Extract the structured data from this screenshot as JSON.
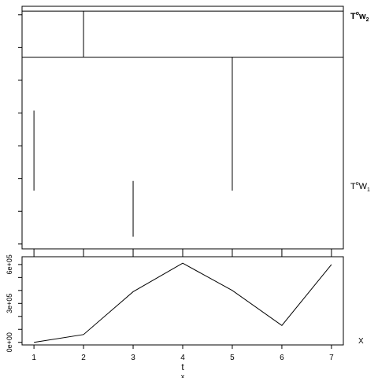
{
  "chart_data": [
    {
      "type": "line",
      "panel": "upper",
      "y_axis_labels_shown": false,
      "right_labels": [
        {
          "id": "w2",
          "base": "T",
          "sup": "o",
          "mid": "w",
          "sub": "2"
        },
        {
          "id": "w1",
          "base": "T",
          "sup": "o",
          "mid": "W",
          "sub": "1"
        }
      ],
      "xlim": [
        0.76,
        7.24
      ],
      "ylim": [
        0,
        1
      ],
      "horizontal_lines": [
        0.98,
        0.79
      ],
      "vertical_segments": [
        {
          "x": 1,
          "y0": 0.24,
          "y1": 0.57
        },
        {
          "x": 2,
          "y0": 0.79,
          "y1": 0.98
        },
        {
          "x": 3,
          "y0": 0.05,
          "y1": 0.28
        },
        {
          "x": 5,
          "y0": 0.24,
          "y1": 0.79
        }
      ]
    },
    {
      "type": "line",
      "panel": "lower",
      "x": [
        1,
        2,
        3,
        4,
        5,
        6,
        7
      ],
      "values": [
        0,
        60000,
        390000,
        610000,
        400000,
        130000,
        600000
      ],
      "xlim": [
        0.76,
        7.24
      ],
      "ylim": [
        -20000,
        660000
      ],
      "x_ticks": [
        "1",
        "2",
        "3",
        "4",
        "5",
        "6",
        "7"
      ],
      "y_ticks": [
        {
          "value": 0,
          "label": "0e+00"
        },
        {
          "value": 100000,
          "label": ""
        },
        {
          "value": 200000,
          "label": ""
        },
        {
          "value": 300000,
          "label": "3e+05"
        },
        {
          "value": 400000,
          "label": ""
        },
        {
          "value": 500000,
          "label": ""
        },
        {
          "value": 600000,
          "label": "6e+05"
        }
      ],
      "xlabel": "t",
      "xlabel_sub": "x",
      "right_label": "X"
    }
  ]
}
